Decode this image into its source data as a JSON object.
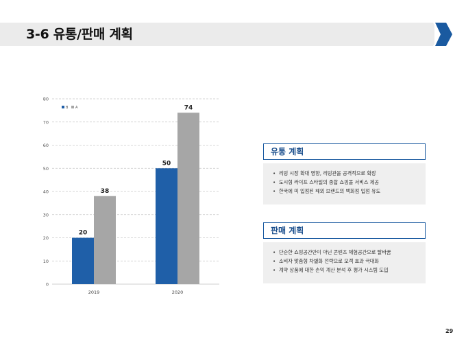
{
  "header": {
    "title": "3-6 유통/판매 계획",
    "accent_color": "#1a5aa0"
  },
  "chart_data": {
    "type": "bar",
    "categories": [
      "2019",
      "2020"
    ],
    "series": [
      {
        "name": "B",
        "color": "#1f5fa8",
        "values": [
          20,
          50
        ]
      },
      {
        "name": "A",
        "color": "#a6a6a6",
        "values": [
          38,
          74
        ]
      }
    ],
    "ylim": [
      0,
      80
    ],
    "yticks": [
      0,
      10,
      20,
      30,
      40,
      50,
      60,
      70,
      80
    ],
    "grid": true,
    "legend_position": "top-left",
    "title": "",
    "xlabel": "",
    "ylabel": ""
  },
  "distribution_plan": {
    "title": "유통 계획",
    "items": [
      "리빙 시장 확대 영향, 리빙관을 공격적으로 확장",
      "도시형 라이프 스타일의 종합 쇼핑몰 서비스 제공",
      "한국에 미 입점된 해외 브랜드의 백화점 입점 유도"
    ]
  },
  "sales_plan": {
    "title": "판매 계획",
    "items": [
      "단순한 쇼핑공간만이 아닌 콘텐츠 체험공간으로 탈바꿈",
      "소비자 맞춤형 차별화 전략으로 모객 효과 극대화",
      "계약 상품에 대한 손익 계산 분석 후 평가 시스템 도입"
    ]
  },
  "page_number": "29"
}
